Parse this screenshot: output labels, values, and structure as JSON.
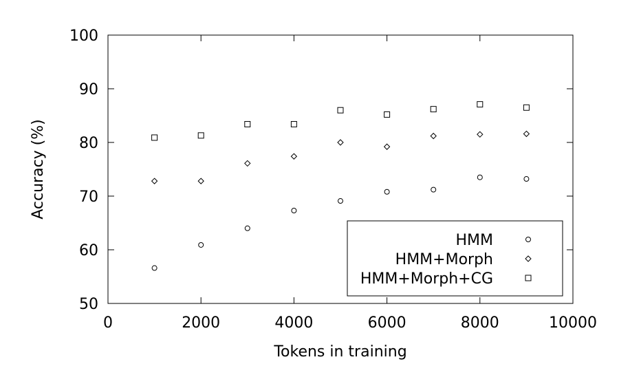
{
  "chart_data": {
    "type": "scatter",
    "title": "",
    "xlabel": "Tokens in training",
    "ylabel": "Accuracy (%)",
    "xlim": [
      0,
      10000
    ],
    "ylim": [
      50,
      100
    ],
    "xticks": [
      0,
      2000,
      4000,
      6000,
      8000,
      10000
    ],
    "yticks": [
      50,
      60,
      70,
      80,
      90,
      100
    ],
    "x_tick_labels": [
      "0",
      "2000",
      "4000",
      "6000",
      "8000",
      "10000"
    ],
    "y_tick_labels": [
      "50",
      "60",
      "70",
      "80",
      "90",
      "100"
    ],
    "grid": false,
    "legend_position": "bottom-right",
    "x": [
      1000,
      2000,
      3000,
      4000,
      5000,
      6000,
      7000,
      8000,
      9000
    ],
    "series": [
      {
        "name": "HMM",
        "marker": "circle",
        "values": [
          56.6,
          60.9,
          64.0,
          67.3,
          69.1,
          70.8,
          71.2,
          73.5,
          73.2
        ]
      },
      {
        "name": "HMM+Morph",
        "marker": "diamond",
        "values": [
          72.8,
          72.8,
          76.1,
          77.4,
          80.0,
          79.2,
          81.2,
          81.5,
          81.6
        ]
      },
      {
        "name": "HMM+Morph+CG",
        "marker": "square",
        "values": [
          80.9,
          81.3,
          83.4,
          83.4,
          86.0,
          85.2,
          86.2,
          87.1,
          86.5
        ]
      }
    ],
    "colors": {
      "marker_stroke": "#000000",
      "axis": "#000000",
      "background": "#ffffff"
    }
  }
}
